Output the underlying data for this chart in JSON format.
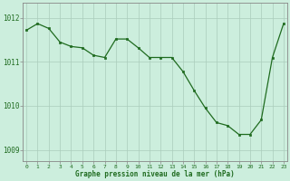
{
  "hours": [
    0,
    1,
    2,
    3,
    4,
    5,
    6,
    7,
    8,
    9,
    10,
    11,
    12,
    13,
    14,
    15,
    16,
    17,
    18,
    19,
    20,
    21,
    22,
    23
  ],
  "pressure": [
    1011.72,
    1011.87,
    1011.76,
    1011.45,
    1011.35,
    1011.32,
    1011.15,
    1011.1,
    1011.52,
    1011.52,
    1011.32,
    1011.1,
    1011.1,
    1011.1,
    1010.78,
    1010.35,
    1009.95,
    1009.62,
    1009.55,
    1009.35,
    1009.35,
    1009.68,
    1011.1,
    1011.87
  ],
  "line_color": "#1f6b1f",
  "marker_color": "#1f6b1f",
  "bg_color": "#cceedd",
  "grid_color": "#aaccbb",
  "xlabel": "Graphe pression niveau de la mer (hPa)",
  "ylim_min": 1008.75,
  "ylim_max": 1012.35,
  "xlim_min": -0.3,
  "xlim_max": 23.3
}
